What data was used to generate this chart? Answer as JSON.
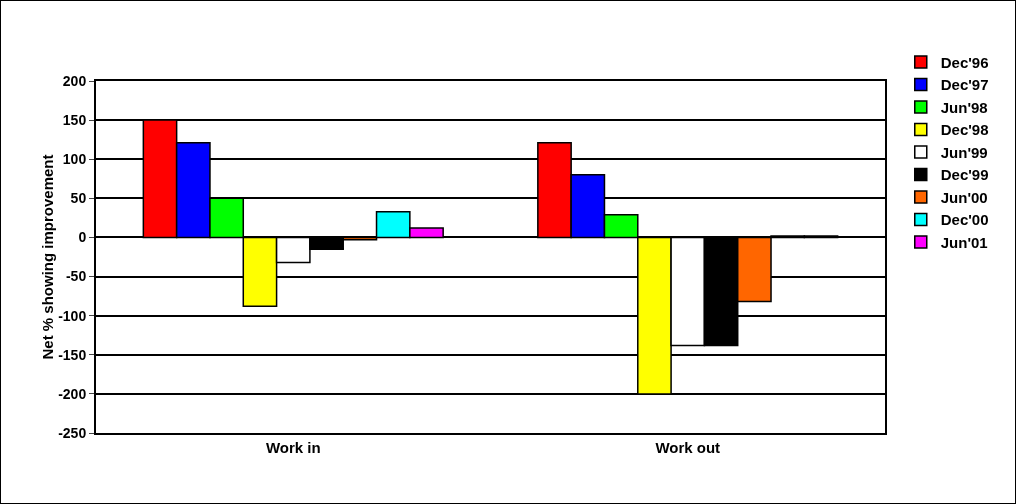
{
  "chart_data": {
    "type": "bar",
    "ylabel": "Net % showing improvement",
    "categories": [
      "Work in",
      "Work out"
    ],
    "series": [
      {
        "name": "Dec'96",
        "color": "#ff0000",
        "values": [
          150,
          121
        ]
      },
      {
        "name": "Dec'97",
        "color": "#0000ff",
        "values": [
          121,
          80
        ]
      },
      {
        "name": "Jun'98",
        "color": "#00ff00",
        "values": [
          50,
          29
        ]
      },
      {
        "name": "Dec'98",
        "color": "#ffff00",
        "values": [
          -88,
          -200
        ]
      },
      {
        "name": "Jun'99",
        "color": "#ffffff",
        "values": [
          -32,
          -138
        ]
      },
      {
        "name": "Dec'99",
        "color": "#000000",
        "values": [
          -15,
          -138
        ]
      },
      {
        "name": "Jun'00",
        "color": "#ff6600",
        "values": [
          -3,
          -82
        ]
      },
      {
        "name": "Dec'00",
        "color": "#00ffff",
        "values": [
          33,
          2
        ]
      },
      {
        "name": "Jun'01",
        "color": "#ff00ff",
        "values": [
          12,
          2
        ]
      }
    ],
    "ylim": [
      -250,
      200
    ],
    "yticks": [
      -250,
      -200,
      -150,
      -100,
      -50,
      0,
      50,
      100,
      150,
      200
    ],
    "grid": "y",
    "legend": "right"
  }
}
